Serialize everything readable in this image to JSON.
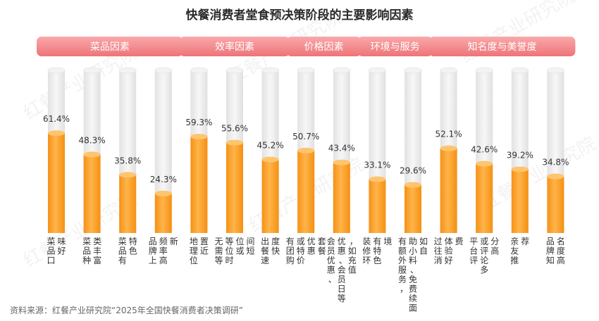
{
  "title": "快餐消费者堂食预决策阶段的主要影响因素",
  "source": "资料来源：红餐产业研究院“2025年全国快餐消费者决策调研”",
  "watermark": "红餐产业研究院",
  "colors": {
    "bar_top": "#ffc266",
    "bar_bottom": "#f79a1e",
    "track": "#ececec",
    "group_pill_top": "#f8a0a3",
    "group_pill_bottom": "#f07a7e"
  },
  "chart_data": {
    "type": "bar",
    "title": "快餐消费者堂食预决策阶段的主要影响因素",
    "ylim": [
      0,
      100
    ],
    "unit": "%",
    "groups": [
      {
        "label": "菜品因素",
        "start": 0,
        "end": 3
      },
      {
        "label": "效率因素",
        "start": 4,
        "end": 6
      },
      {
        "label": "价格因素",
        "start": 7,
        "end": 8
      },
      {
        "label": "环境与服务",
        "start": 9,
        "end": 10
      },
      {
        "label": "知名度与美誉度",
        "start": 11,
        "end": 14
      }
    ],
    "categories": [
      [
        "菜品口",
        "味好"
      ],
      [
        "菜品种",
        "类丰富"
      ],
      [
        "菜品有",
        "特色"
      ],
      [
        "品牌上",
        "频率高",
        "新"
      ],
      [
        "地理位",
        "置近"
      ],
      [
        "无需等",
        "等位时",
        "位或",
        "间短"
      ],
      [
        "出餐速",
        "度快"
      ],
      [
        "有团购",
        "或特价",
        "优惠",
        "套餐"
      ],
      [
        "会员优惠、",
        "优惠、会员日等",
        "，如充值"
      ],
      [
        "装修环",
        "有特色",
        "境"
      ],
      [
        "有额外服务，",
        "助小料、免费续面",
        "如自"
      ],
      [
        "过往消",
        "体验好",
        "费"
      ],
      [
        "平台评",
        "或评论多",
        "分高"
      ],
      [
        "亲友推",
        "荐"
      ],
      [
        "品牌知",
        "名度高"
      ]
    ],
    "values": [
      61.4,
      48.3,
      35.8,
      24.3,
      59.3,
      55.6,
      45.2,
      50.7,
      43.4,
      33.1,
      29.6,
      52.1,
      42.6,
      39.2,
      34.8
    ],
    "value_labels": [
      "61.4%",
      "48.3%",
      "35.8%",
      "24.3%",
      "59.3%",
      "55.6%",
      "45.2%",
      "50.7%",
      "43.4%",
      "33.1%",
      "29.6%",
      "52.1%",
      "42.6%",
      "39.2%",
      "34.8%"
    ]
  }
}
